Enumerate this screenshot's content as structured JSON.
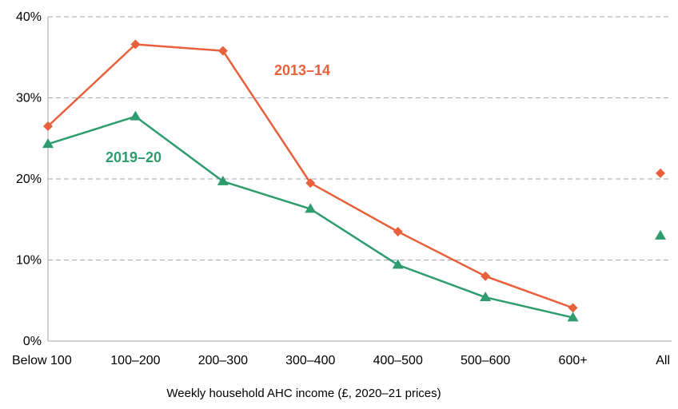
{
  "chart_data": {
    "type": "line",
    "categories": [
      "Below 100",
      "100–200",
      "200–300",
      "300–400",
      "400–500",
      "500–600",
      "600+",
      "All"
    ],
    "xlabel": "Weekly household AHC  income (£, 2020–21 prices)",
    "ylabel": "",
    "ylim": [
      0,
      40
    ],
    "yticks": [
      0,
      10,
      20,
      30,
      40
    ],
    "ytick_labels": [
      "0%",
      "10%",
      "20%",
      "30%",
      "40%"
    ],
    "grid": "horizontal dashed",
    "series": [
      {
        "name": "2013–14",
        "color": "#E8603C",
        "marker": "diamond",
        "values": [
          26.5,
          36.6,
          35.8,
          19.5,
          13.5,
          8.0,
          4.1,
          20.7
        ],
        "connected_points": 7
      },
      {
        "name": "2019–20",
        "color": "#2E9C6E",
        "marker": "triangle",
        "values": [
          24.3,
          27.7,
          19.7,
          16.3,
          9.4,
          5.4,
          2.9,
          13.0
        ],
        "connected_points": 7
      }
    ]
  }
}
